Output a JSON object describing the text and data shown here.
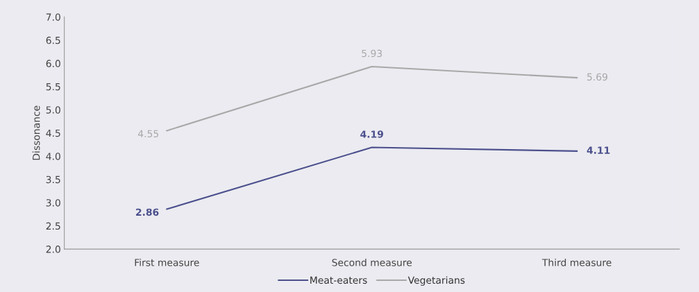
{
  "chart_data": {
    "type": "line",
    "ylabel": "Dissonance",
    "categories": [
      "First measure",
      "Second measure",
      "Third measure"
    ],
    "series": [
      {
        "name": "Meat-eaters",
        "color": "#4b4f8c",
        "values": [
          2.86,
          4.19,
          4.11
        ]
      },
      {
        "name": "Vegetarians",
        "color": "#a8a8a8",
        "values": [
          4.55,
          5.93,
          5.69
        ]
      }
    ],
    "ylim": [
      2.0,
      7.0
    ],
    "yticks": [
      {
        "value": 2.0,
        "label": "2.0"
      },
      {
        "value": 2.5,
        "label": "2.5"
      },
      {
        "value": 3.0,
        "label": "3.0"
      },
      {
        "value": 3.5,
        "label": "3.5"
      },
      {
        "value": 4.0,
        "label": "4.0"
      },
      {
        "value": 4.5,
        "label": "4.5"
      },
      {
        "value": 5.0,
        "label": "5.0"
      },
      {
        "value": 5.5,
        "label": "5.5"
      },
      {
        "value": 6.0,
        "label": "6.0"
      },
      {
        "value": 6.5,
        "label": "6.5"
      },
      {
        "value": 7.0,
        "label": "7.0"
      }
    ],
    "data_labels": true,
    "legend": "bottom",
    "grid": false,
    "marker": "none",
    "line_style": "solid"
  }
}
